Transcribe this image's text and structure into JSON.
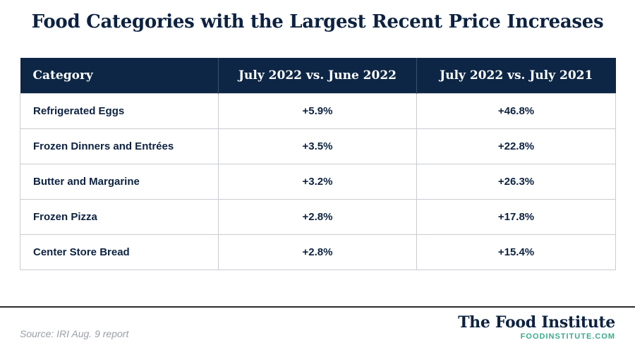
{
  "title": "Food Categories with the Largest Recent Price Increases",
  "chart_data": {
    "type": "table",
    "title": "Food Categories with the Largest Recent Price Increases",
    "columns": [
      "Category",
      "July 2022 vs. June 2022",
      "July 2022 vs. July 2021"
    ],
    "rows": [
      {
        "category": "Refrigerated Eggs",
        "mom": "+5.9%",
        "yoy": "+46.8%"
      },
      {
        "category": "Frozen Dinners and Entrées",
        "mom": "+3.5%",
        "yoy": "+22.8%"
      },
      {
        "category": "Butter and Margarine",
        "mom": "+3.2%",
        "yoy": "+26.3%"
      },
      {
        "category": "Frozen Pizza",
        "mom": "+2.8%",
        "yoy": "+17.8%"
      },
      {
        "category": "Center Store Bread",
        "mom": "+2.8%",
        "yoy": "+15.4%"
      }
    ]
  },
  "footer": {
    "source": "Source: IRI Aug. 9 report",
    "brand_name": "The Food Institute",
    "brand_url": "FOODINSTITUTE.COM"
  },
  "colors": {
    "header_bg": "#0d2645",
    "text": "#0d2240",
    "brand_accent": "#3daa8c"
  }
}
